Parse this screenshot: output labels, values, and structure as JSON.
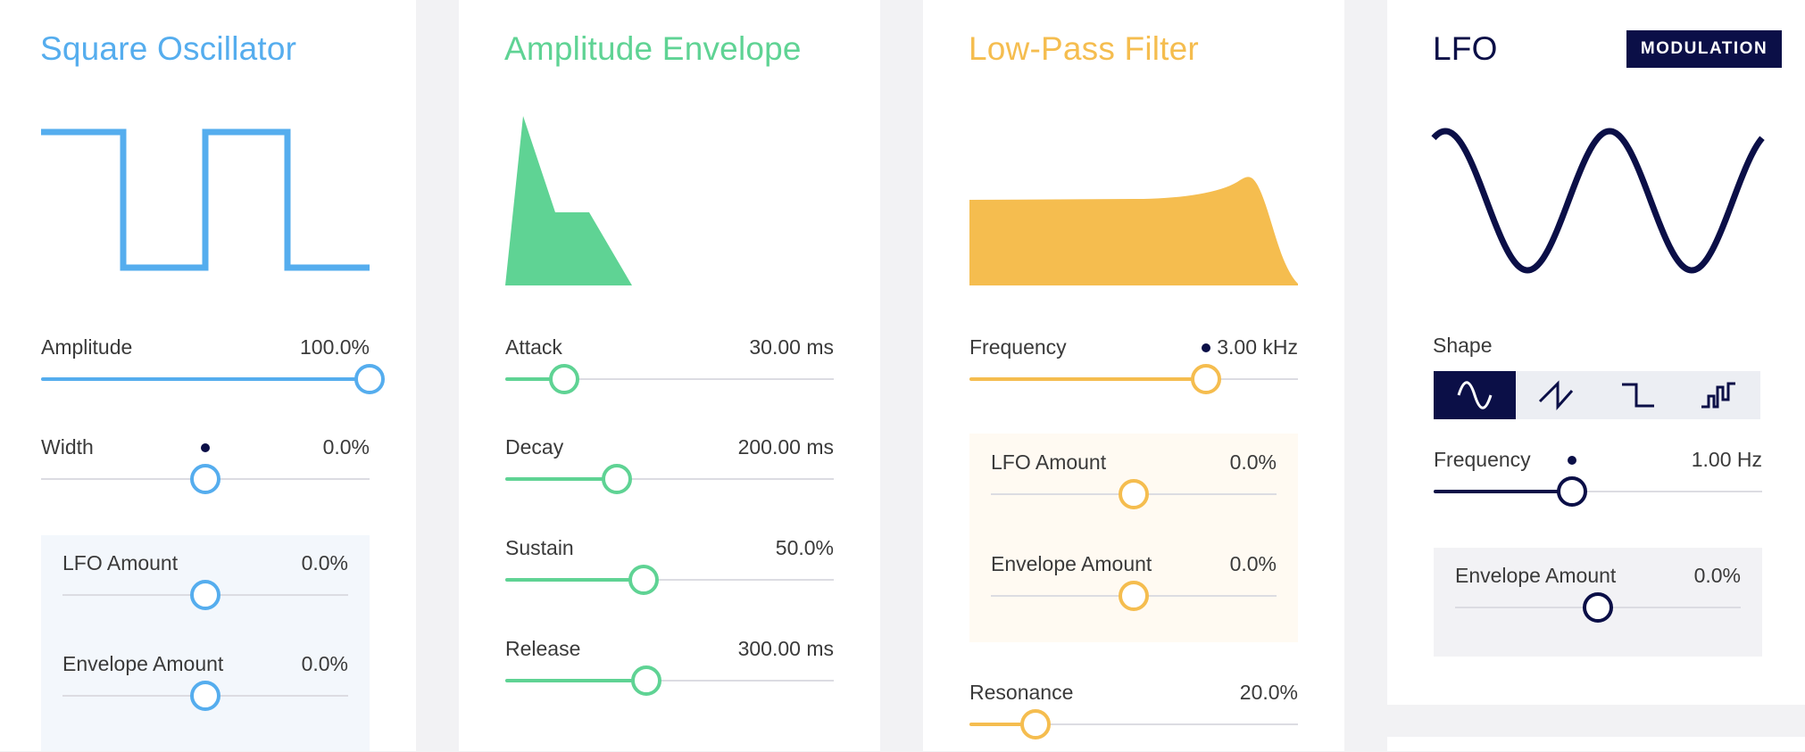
{
  "colors": {
    "blue": "#55adee",
    "green": "#5fd394",
    "yellow": "#f5bd4f",
    "navy": "#0b0f47",
    "track": "#dcdce2",
    "blueBox": "#f3f7fc",
    "yellowBox": "#fffaf2",
    "grayBox": "#f2f2f5"
  },
  "oscillator": {
    "title": "Square Oscillator",
    "amplitude": {
      "label": "Amplitude",
      "value": "100.0%",
      "level": 1.0
    },
    "width": {
      "label": "Width",
      "value": "0.0%",
      "level": 0.5
    },
    "lfo_amount": {
      "label": "LFO Amount",
      "value": "0.0%",
      "level": 0.5
    },
    "envelope_amount": {
      "label": "Envelope Amount",
      "value": "0.0%",
      "level": 0.5
    }
  },
  "envelope": {
    "title": "Amplitude Envelope",
    "attack": {
      "label": "Attack",
      "value": "30.00 ms",
      "level": 0.18
    },
    "decay": {
      "label": "Decay",
      "value": "200.00 ms",
      "level": 0.34
    },
    "sustain": {
      "label": "Sustain",
      "value": "50.0%",
      "level": 0.42
    },
    "release": {
      "label": "Release",
      "value": "300.00 ms",
      "level": 0.43
    }
  },
  "filter": {
    "title": "Low-Pass Filter",
    "frequency": {
      "label": "Frequency",
      "value": "3.00 kHz",
      "level": 0.72
    },
    "lfo_amount": {
      "label": "LFO Amount",
      "value": "0.0%",
      "level": 0.5
    },
    "envelope_amount": {
      "label": "Envelope Amount",
      "value": "0.0%",
      "level": 0.5
    },
    "resonance": {
      "label": "Resonance",
      "value": "20.0%",
      "level": 0.2
    }
  },
  "lfo": {
    "title": "LFO",
    "badge": "MODULATION",
    "shape_label": "Shape",
    "shapes": [
      "sine-icon",
      "sawtooth-icon",
      "square-icon",
      "random-icon"
    ],
    "selected_shape": 0,
    "frequency": {
      "label": "Frequency",
      "value": "1.00 Hz",
      "level": 0.42
    },
    "envelope_amount": {
      "label": "Envelope Amount",
      "value": "0.0%",
      "level": 0.5
    }
  }
}
